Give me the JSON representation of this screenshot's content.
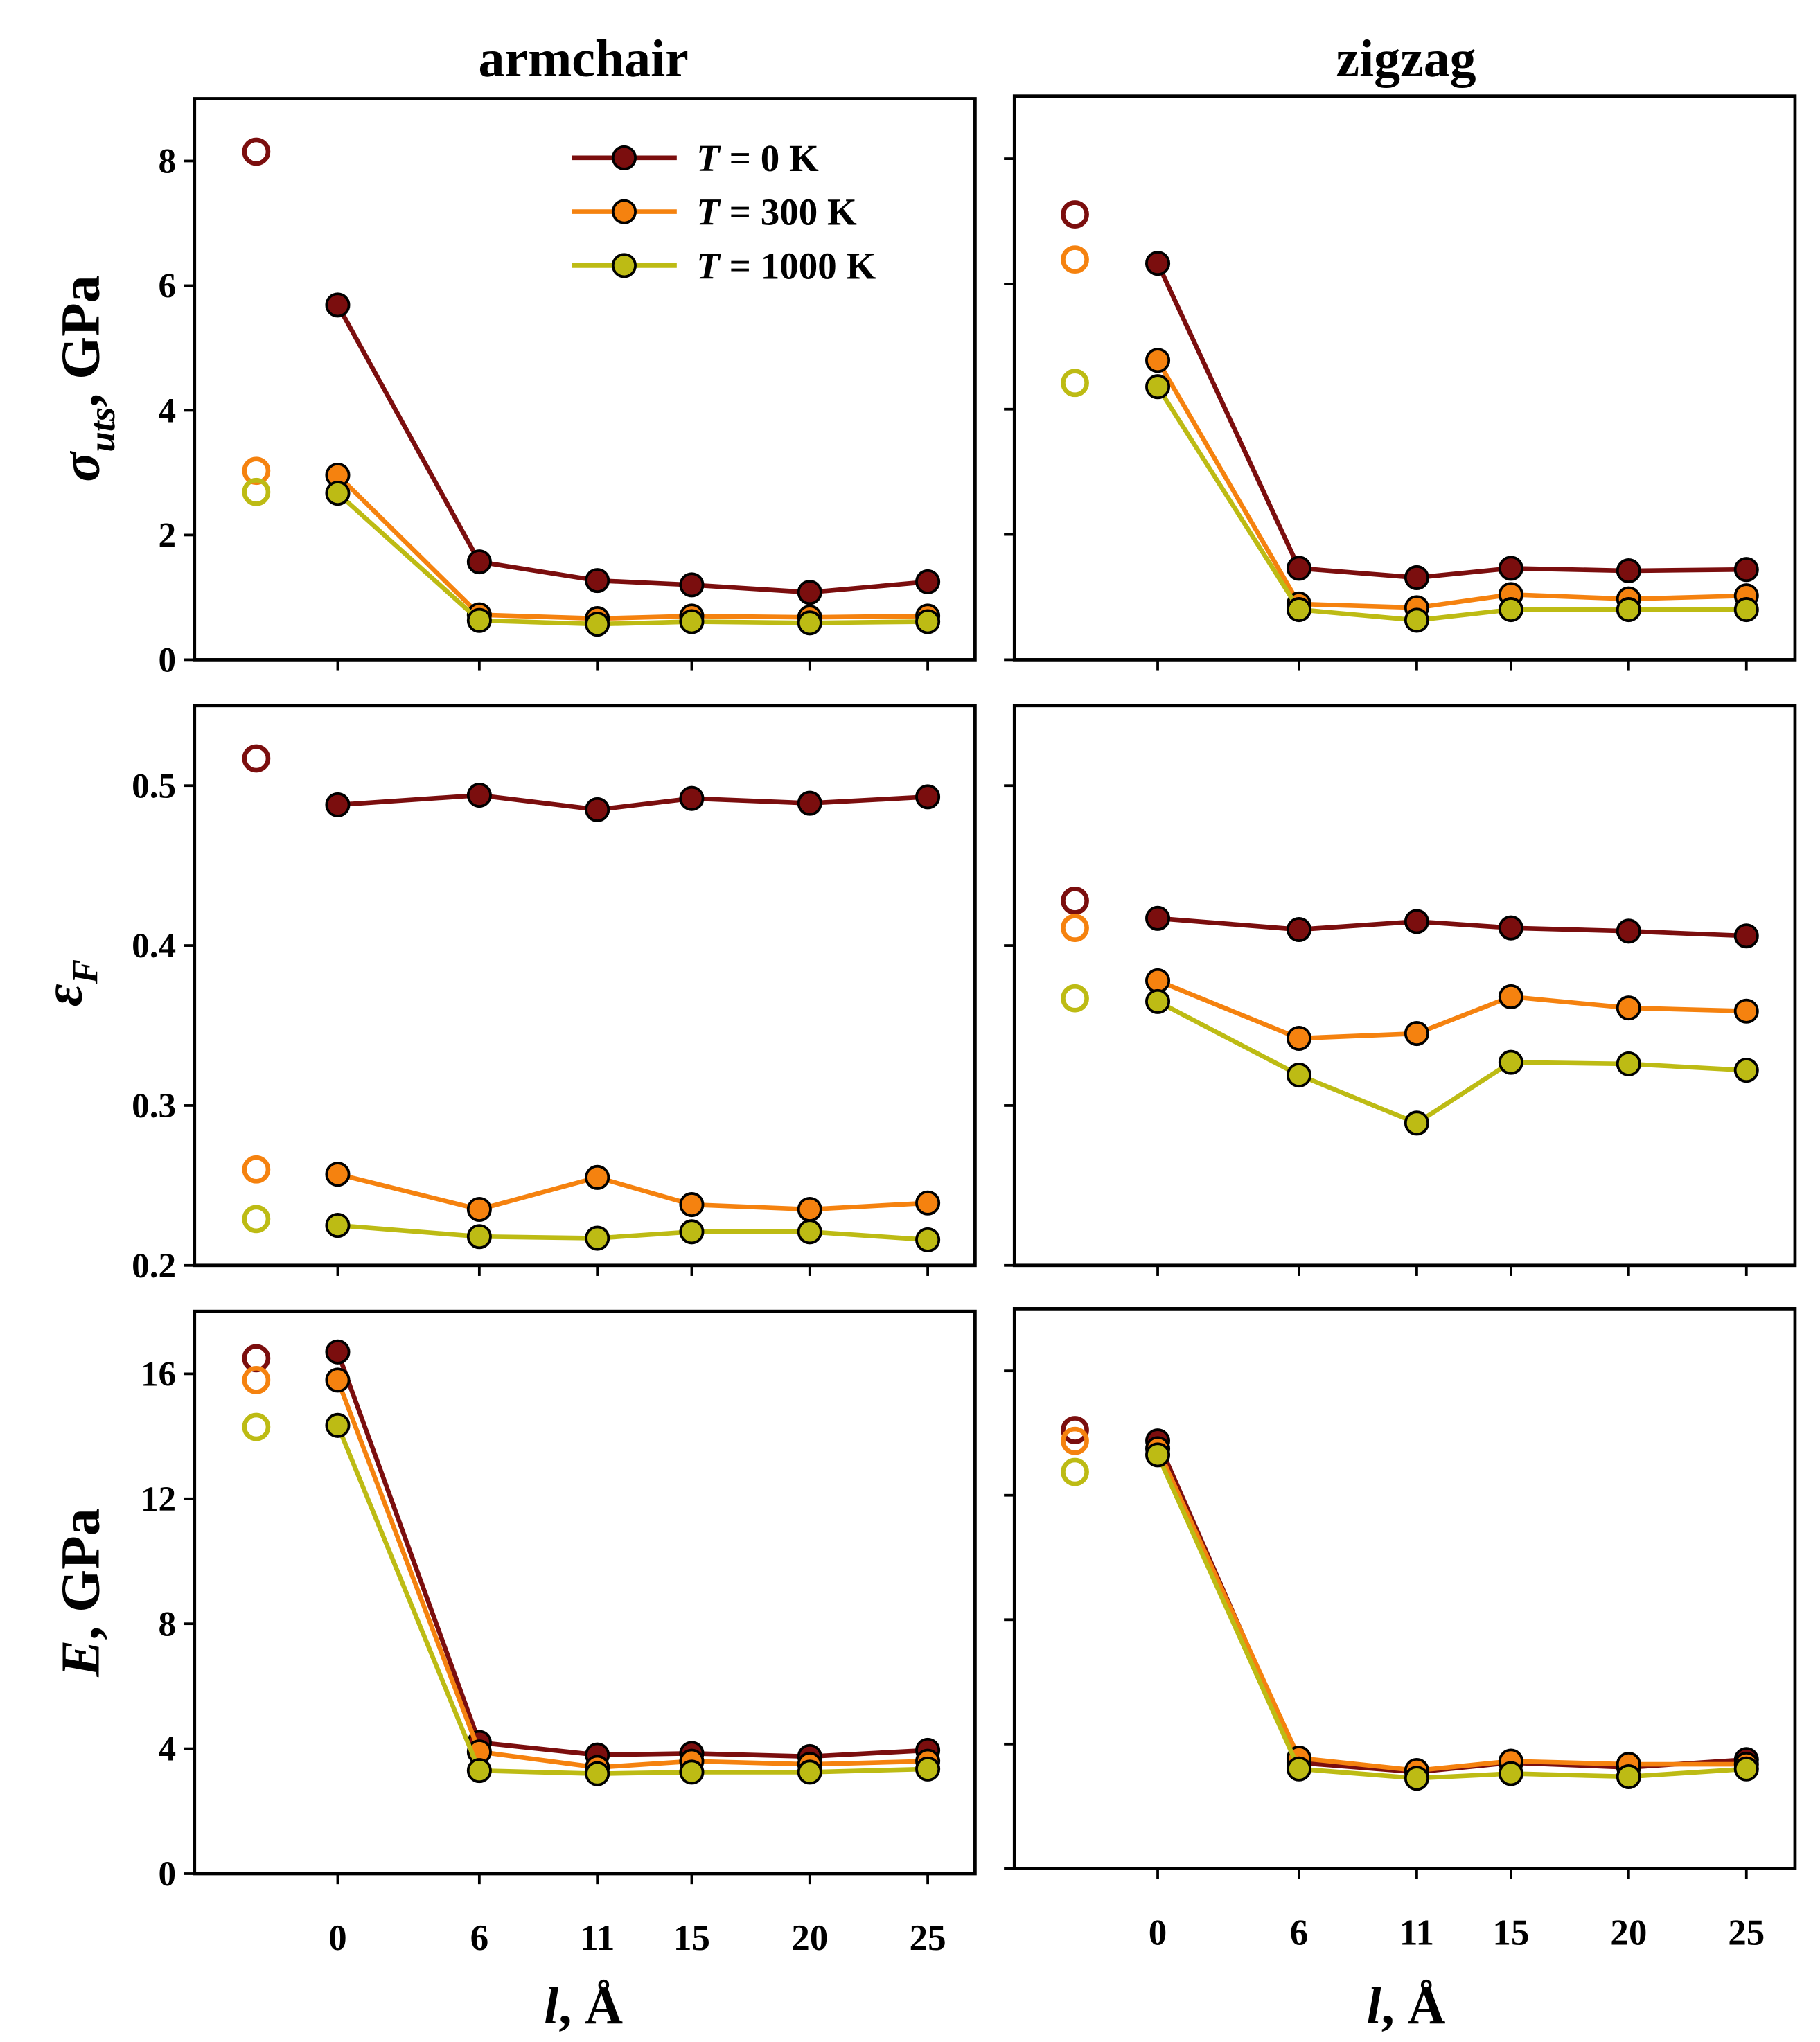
{
  "column_titles": [
    "armchair",
    "zigzag"
  ],
  "xlabel": {
    "var": "l",
    "rest": ", Å"
  },
  "ylabels": [
    {
      "var": "σ",
      "sub": "uts",
      "rest": ", GPa"
    },
    {
      "var": "ε",
      "sub": "F",
      "rest": ""
    },
    {
      "var": "E",
      "sub": "",
      "rest": ", GPa"
    }
  ],
  "legend": [
    {
      "italic": "T",
      "rest": " = 0 K"
    },
    {
      "italic": "T",
      "rest": " = 300 K"
    },
    {
      "italic": "T",
      "rest": " = 1000 K"
    }
  ],
  "colors": {
    "T0": "#7b0e0e",
    "T300": "#f5820f",
    "T1000": "#bdbb14"
  },
  "chart_data": [
    {
      "type": "line",
      "panel": "armchair-sigma",
      "x": [
        0,
        6,
        11,
        15,
        20,
        25
      ],
      "ylim": [
        0,
        9
      ],
      "yticks": [
        0,
        2,
        4,
        6,
        8
      ],
      "show_ytick_labels": true,
      "series": [
        {
          "name": "T = 0 K",
          "color_key": "T0",
          "reference_open": 8.15,
          "values": [
            5.69,
            1.57,
            1.27,
            1.2,
            1.08,
            1.25
          ]
        },
        {
          "name": "T = 300 K",
          "color_key": "T300",
          "reference_open": 3.03,
          "values": [
            2.96,
            0.72,
            0.66,
            0.7,
            0.68,
            0.7
          ]
        },
        {
          "name": "T = 1000 K",
          "color_key": "T1000",
          "reference_open": 2.69,
          "values": [
            2.67,
            0.63,
            0.57,
            0.61,
            0.59,
            0.61
          ]
        }
      ]
    },
    {
      "type": "line",
      "panel": "zigzag-sigma",
      "x": [
        0,
        6,
        11,
        15,
        20,
        25
      ],
      "ylim": [
        0,
        9
      ],
      "yticks": [
        0,
        2,
        4,
        6,
        8
      ],
      "show_ytick_labels": false,
      "series": [
        {
          "name": "T = 0 K",
          "color_key": "T0",
          "reference_open": 7.11,
          "values": [
            6.33,
            1.46,
            1.31,
            1.46,
            1.42,
            1.44
          ]
        },
        {
          "name": "T = 300 K",
          "color_key": "T300",
          "reference_open": 6.39,
          "values": [
            4.78,
            0.89,
            0.83,
            1.04,
            0.97,
            1.02
          ]
        },
        {
          "name": "T = 1000 K",
          "color_key": "T1000",
          "reference_open": 4.42,
          "values": [
            4.36,
            0.8,
            0.63,
            0.8,
            0.8,
            0.8
          ]
        }
      ]
    },
    {
      "type": "line",
      "panel": "armchair-eps",
      "x": [
        0,
        6,
        11,
        15,
        20,
        25
      ],
      "ylim": [
        0.2,
        0.55
      ],
      "yticks": [
        0.2,
        0.3,
        0.4,
        0.5
      ],
      "show_ytick_labels": true,
      "series": [
        {
          "name": "T = 0 K",
          "color_key": "T0",
          "reference_open": 0.517,
          "values": [
            0.488,
            0.494,
            0.485,
            0.492,
            0.489,
            0.493
          ]
        },
        {
          "name": "T = 300 K",
          "color_key": "T300",
          "reference_open": 0.26,
          "values": [
            0.257,
            0.235,
            0.255,
            0.238,
            0.235,
            0.239
          ]
        },
        {
          "name": "T = 1000 K",
          "color_key": "T1000",
          "reference_open": 0.229,
          "values": [
            0.225,
            0.218,
            0.217,
            0.221,
            0.221,
            0.216
          ]
        }
      ]
    },
    {
      "type": "line",
      "panel": "zigzag-eps",
      "x": [
        0,
        6,
        11,
        15,
        20,
        25
      ],
      "ylim": [
        0.2,
        0.55
      ],
      "yticks": [
        0.2,
        0.3,
        0.4,
        0.5
      ],
      "show_ytick_labels": false,
      "series": [
        {
          "name": "T = 0 K",
          "color_key": "T0",
          "reference_open": 0.428,
          "values": [
            0.417,
            0.41,
            0.415,
            0.411,
            0.409,
            0.406
          ]
        },
        {
          "name": "T = 300 K",
          "color_key": "T300",
          "reference_open": 0.411,
          "values": [
            0.378,
            0.342,
            0.345,
            0.368,
            0.361,
            0.359
          ]
        },
        {
          "name": "T = 1000 K",
          "color_key": "T1000",
          "reference_open": 0.367,
          "values": [
            0.365,
            0.319,
            0.289,
            0.327,
            0.326,
            0.322
          ]
        }
      ]
    },
    {
      "type": "line",
      "panel": "armchair-E",
      "x": [
        0,
        6,
        11,
        15,
        20,
        25
      ],
      "ylim": [
        0,
        18
      ],
      "yticks": [
        0,
        4,
        8,
        12,
        16
      ],
      "show_ytick_labels": true,
      "series": [
        {
          "name": "T = 0 K",
          "color_key": "T0",
          "reference_open": 16.5,
          "values": [
            16.7,
            4.2,
            3.8,
            3.85,
            3.75,
            3.95
          ]
        },
        {
          "name": "T = 300 K",
          "color_key": "T300",
          "reference_open": 15.8,
          "values": [
            15.8,
            3.9,
            3.4,
            3.6,
            3.5,
            3.6
          ]
        },
        {
          "name": "T = 1000 K",
          "color_key": "T1000",
          "reference_open": 14.3,
          "values": [
            14.35,
            3.3,
            3.2,
            3.25,
            3.25,
            3.35
          ]
        }
      ]
    },
    {
      "type": "line",
      "panel": "zigzag-E",
      "x": [
        0,
        6,
        11,
        15,
        20,
        25
      ],
      "ylim": [
        0,
        18
      ],
      "yticks": [
        0,
        4,
        8,
        12,
        16
      ],
      "show_ytick_labels": false,
      "series": [
        {
          "name": "T = 0 K",
          "color_key": "T0",
          "reference_open": 14.1,
          "values": [
            13.75,
            3.4,
            3.1,
            3.4,
            3.25,
            3.5
          ]
        },
        {
          "name": "T = 300 K",
          "color_key": "T300",
          "reference_open": 13.75,
          "values": [
            13.5,
            3.55,
            3.15,
            3.45,
            3.35,
            3.35
          ]
        },
        {
          "name": "T = 1000 K",
          "color_key": "T1000",
          "reference_open": 12.75,
          "values": [
            13.3,
            3.2,
            2.9,
            3.05,
            2.95,
            3.2
          ]
        }
      ]
    }
  ]
}
